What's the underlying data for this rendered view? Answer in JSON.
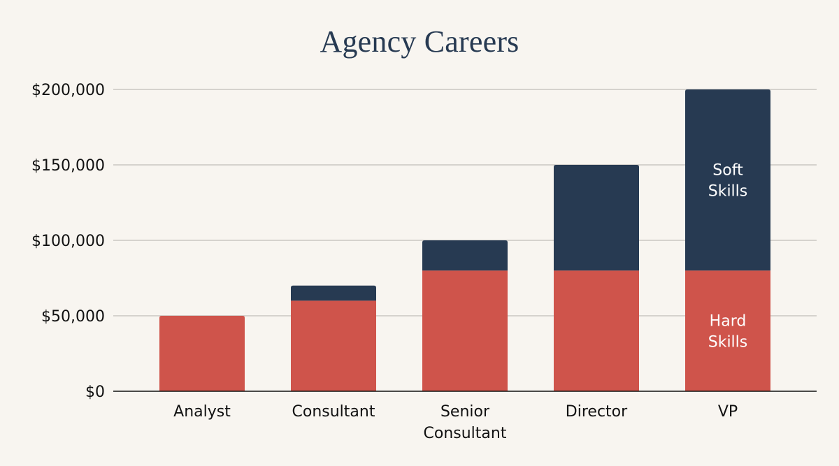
{
  "chart_data": {
    "type": "bar",
    "stacked": true,
    "title": "Agency Careers",
    "xlabel": "",
    "ylabel": "",
    "categories": [
      "Analyst",
      "Consultant",
      "Senior Consultant",
      "Director",
      "VP"
    ],
    "series": [
      {
        "name": "Hard Skills",
        "color": "#cf544b",
        "values": [
          50000,
          60000,
          80000,
          80000,
          80000
        ]
      },
      {
        "name": "Soft Skills",
        "color": "#273a52",
        "values": [
          0,
          10000,
          20000,
          70000,
          120000
        ]
      }
    ],
    "yticks": [
      0,
      50000,
      100000,
      150000,
      200000
    ],
    "ytick_labels": [
      "$0",
      "$50,000",
      "$100,000",
      "$150,000",
      "$200,000"
    ],
    "ylim": [
      0,
      200000
    ],
    "grid": true,
    "segment_labels": [
      {
        "category": "VP",
        "series": "Soft Skills",
        "text": "Soft Skills"
      },
      {
        "category": "VP",
        "series": "Hard Skills",
        "text": "Hard Skills"
      }
    ]
  }
}
